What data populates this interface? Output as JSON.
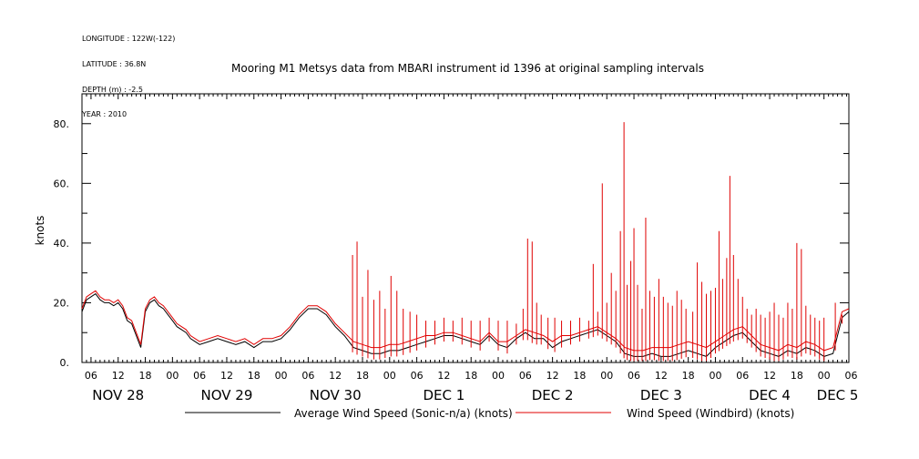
{
  "header": {
    "meta_lines": [
      "LONGITUDE : 122W(-122)",
      "LATITUDE : 36.8N",
      "DEPTH (m) : -2.5",
      "YEAR : 2010"
    ],
    "title": "Mooring M1 Metsys data from MBARI instrument id 1396 at original sampling intervals"
  },
  "colors": {
    "average": "#000000",
    "windbird": "#e00000",
    "axes": "#000000"
  },
  "chart_data": {
    "type": "line",
    "title": "Mooring M1 Metsys data from MBARI instrument id 1396 at original sampling intervals",
    "ylabel": "knots",
    "xlabel": "",
    "ylim": [
      0,
      90
    ],
    "yticks": [
      0,
      20,
      40,
      60,
      80
    ],
    "ytick_labels": [
      "0.",
      "20.",
      "40.",
      "60.",
      "80."
    ],
    "x_unit": "hours since 2010-11-28 00:00",
    "xlim": [
      4,
      173.5
    ],
    "hour_ticks": [
      {
        "x": 6,
        "label": "06"
      },
      {
        "x": 12,
        "label": "12"
      },
      {
        "x": 18,
        "label": "18"
      },
      {
        "x": 24,
        "label": "00"
      },
      {
        "x": 30,
        "label": "06"
      },
      {
        "x": 36,
        "label": "12"
      },
      {
        "x": 42,
        "label": "18"
      },
      {
        "x": 48,
        "label": "00"
      },
      {
        "x": 54,
        "label": "06"
      },
      {
        "x": 60,
        "label": "12"
      },
      {
        "x": 66,
        "label": "18"
      },
      {
        "x": 72,
        "label": "00"
      },
      {
        "x": 78,
        "label": "06"
      },
      {
        "x": 84,
        "label": "12"
      },
      {
        "x": 90,
        "label": "18"
      },
      {
        "x": 96,
        "label": "00"
      },
      {
        "x": 102,
        "label": "06"
      },
      {
        "x": 108,
        "label": "12"
      },
      {
        "x": 114,
        "label": "18"
      },
      {
        "x": 120,
        "label": "00"
      },
      {
        "x": 126,
        "label": "06"
      },
      {
        "x": 132,
        "label": "12"
      },
      {
        "x": 138,
        "label": "18"
      },
      {
        "x": 144,
        "label": "00"
      },
      {
        "x": 150,
        "label": "06"
      },
      {
        "x": 156,
        "label": "12"
      },
      {
        "x": 162,
        "label": "18"
      },
      {
        "x": 168,
        "label": "00"
      },
      {
        "x": 174,
        "label": "06"
      }
    ],
    "day_labels": [
      {
        "x": 12,
        "label": "NOV 28"
      },
      {
        "x": 36,
        "label": "NOV 29"
      },
      {
        "x": 60,
        "label": "NOV 30"
      },
      {
        "x": 84,
        "label": "DEC  1"
      },
      {
        "x": 108,
        "label": "DEC  2"
      },
      {
        "x": 132,
        "label": "DEC  3"
      },
      {
        "x": 156,
        "label": "DEC  4"
      },
      {
        "x": 171,
        "label": "DEC  5"
      }
    ],
    "series": [
      {
        "name": "Average Wind Speed (Sonic-n/a) (knots)",
        "color": "#000000",
        "x": [
          4,
          5,
          6,
          7,
          8,
          9,
          10,
          11,
          12,
          13,
          14,
          15,
          16,
          17,
          18,
          19,
          20,
          21,
          22,
          23,
          24,
          25,
          26,
          27,
          28,
          29,
          30,
          32,
          34,
          36,
          38,
          40,
          42,
          44,
          46,
          48,
          50,
          52,
          54,
          56,
          58,
          60,
          62,
          64,
          66,
          68,
          70,
          72,
          74,
          76,
          78,
          80,
          82,
          84,
          86,
          88,
          90,
          92,
          94,
          96,
          98,
          100,
          102,
          104,
          106,
          108,
          110,
          112,
          114,
          116,
          118,
          120,
          122,
          124,
          126,
          128,
          130,
          132,
          134,
          136,
          138,
          140,
          142,
          144,
          146,
          148,
          150,
          152,
          154,
          156,
          158,
          160,
          162,
          164,
          166,
          168,
          170,
          172,
          173.5
        ],
        "values": [
          17,
          21,
          22,
          23,
          21,
          20,
          20,
          19,
          20,
          18,
          14,
          13,
          9,
          5,
          17,
          20,
          21,
          19,
          18,
          16,
          14,
          12,
          11,
          10,
          8,
          7,
          6,
          7,
          8,
          7,
          6,
          7,
          5,
          7,
          7,
          8,
          11,
          15,
          18,
          18,
          16,
          12,
          9,
          5,
          4,
          3,
          3,
          4,
          4,
          5,
          6,
          7,
          8,
          9,
          9,
          8,
          7,
          6,
          9,
          6,
          5,
          8,
          10,
          8,
          8,
          5,
          7,
          8,
          9,
          10,
          11,
          9,
          7,
          3,
          2,
          2,
          3,
          2,
          2,
          3,
          4,
          3,
          2,
          5,
          7,
          9,
          10,
          7,
          4,
          3,
          2,
          4,
          3,
          5,
          4,
          2,
          3,
          15,
          17
        ]
      },
      {
        "name": "Wind Speed (Windbird) (knots)",
        "color": "#e00000",
        "x": [
          4,
          5,
          6,
          7,
          8,
          9,
          10,
          11,
          12,
          13,
          14,
          15,
          16,
          17,
          18,
          19,
          20,
          21,
          22,
          23,
          24,
          25,
          26,
          27,
          28,
          29,
          30,
          32,
          34,
          36,
          38,
          40,
          42,
          44,
          46,
          48,
          50,
          52,
          54,
          56,
          58,
          60,
          62,
          64,
          66,
          68,
          70,
          72,
          74,
          76,
          78,
          80,
          82,
          84,
          86,
          88,
          90,
          92,
          94,
          96,
          98,
          100,
          102,
          104,
          106,
          108,
          110,
          112,
          114,
          116,
          118,
          120,
          122,
          124,
          126,
          128,
          130,
          132,
          134,
          136,
          138,
          140,
          142,
          144,
          146,
          148,
          150,
          152,
          154,
          156,
          158,
          160,
          162,
          164,
          166,
          168,
          170,
          172,
          173.5
        ],
        "values": [
          18,
          22,
          23,
          24,
          22,
          21,
          21,
          20,
          21,
          19,
          15,
          14,
          10,
          6,
          18,
          21,
          22,
          20,
          19,
          17,
          15,
          13,
          12,
          11,
          9,
          8,
          7,
          8,
          9,
          8,
          7,
          8,
          6,
          8,
          8,
          9,
          12,
          16,
          19,
          19,
          17,
          13,
          10,
          7,
          6,
          5,
          5,
          6,
          6,
          7,
          8,
          9,
          9,
          10,
          10,
          9,
          8,
          7,
          10,
          7,
          7,
          9,
          11,
          10,
          9,
          7,
          9,
          9,
          10,
          11,
          12,
          10,
          8,
          5,
          4,
          4,
          5,
          5,
          5,
          6,
          7,
          6,
          5,
          7,
          9,
          11,
          12,
          9,
          6,
          5,
          4,
          6,
          5,
          7,
          6,
          4,
          5,
          17,
          18
        ],
        "spikes": [
          {
            "x": 63.8,
            "y": 36
          },
          {
            "x": 64.8,
            "y": 40.5
          },
          {
            "x": 66,
            "y": 22
          },
          {
            "x": 67.2,
            "y": 31
          },
          {
            "x": 68.5,
            "y": 21
          },
          {
            "x": 69.8,
            "y": 24
          },
          {
            "x": 71,
            "y": 18
          },
          {
            "x": 72.3,
            "y": 29
          },
          {
            "x": 73.6,
            "y": 24
          },
          {
            "x": 75,
            "y": 18
          },
          {
            "x": 76.5,
            "y": 17
          },
          {
            "x": 78,
            "y": 16
          },
          {
            "x": 80,
            "y": 14
          },
          {
            "x": 82,
            "y": 14
          },
          {
            "x": 84,
            "y": 15
          },
          {
            "x": 86,
            "y": 14
          },
          {
            "x": 88,
            "y": 15
          },
          {
            "x": 90,
            "y": 14
          },
          {
            "x": 92,
            "y": 14
          },
          {
            "x": 94,
            "y": 15
          },
          {
            "x": 96,
            "y": 14
          },
          {
            "x": 98,
            "y": 14
          },
          {
            "x": 100,
            "y": 13
          },
          {
            "x": 101.5,
            "y": 18
          },
          {
            "x": 102.5,
            "y": 41.5
          },
          {
            "x": 103.5,
            "y": 40.5
          },
          {
            "x": 104.5,
            "y": 20
          },
          {
            "x": 105.5,
            "y": 16
          },
          {
            "x": 107,
            "y": 15
          },
          {
            "x": 108.5,
            "y": 15
          },
          {
            "x": 110,
            "y": 14
          },
          {
            "x": 112,
            "y": 14
          },
          {
            "x": 114,
            "y": 15
          },
          {
            "x": 116,
            "y": 14
          },
          {
            "x": 117,
            "y": 33
          },
          {
            "x": 118,
            "y": 17
          },
          {
            "x": 119,
            "y": 60
          },
          {
            "x": 120,
            "y": 20
          },
          {
            "x": 121,
            "y": 30
          },
          {
            "x": 122,
            "y": 24
          },
          {
            "x": 123,
            "y": 44
          },
          {
            "x": 123.8,
            "y": 80.5
          },
          {
            "x": 124.5,
            "y": 26
          },
          {
            "x": 125.3,
            "y": 34
          },
          {
            "x": 126,
            "y": 45
          },
          {
            "x": 126.8,
            "y": 26
          },
          {
            "x": 127.8,
            "y": 18
          },
          {
            "x": 128.6,
            "y": 48.5
          },
          {
            "x": 129.5,
            "y": 24
          },
          {
            "x": 130.5,
            "y": 22
          },
          {
            "x": 131.5,
            "y": 28
          },
          {
            "x": 132.5,
            "y": 22
          },
          {
            "x": 133.5,
            "y": 20
          },
          {
            "x": 134.5,
            "y": 19
          },
          {
            "x": 135.5,
            "y": 24
          },
          {
            "x": 136.5,
            "y": 21
          },
          {
            "x": 137.5,
            "y": 18
          },
          {
            "x": 139,
            "y": 17
          },
          {
            "x": 140,
            "y": 33.5
          },
          {
            "x": 141,
            "y": 27
          },
          {
            "x": 142,
            "y": 23
          },
          {
            "x": 143,
            "y": 24
          },
          {
            "x": 144,
            "y": 25
          },
          {
            "x": 144.8,
            "y": 44
          },
          {
            "x": 145.6,
            "y": 28
          },
          {
            "x": 146.5,
            "y": 35
          },
          {
            "x": 147.2,
            "y": 62.5
          },
          {
            "x": 148,
            "y": 36
          },
          {
            "x": 149,
            "y": 28
          },
          {
            "x": 150,
            "y": 22
          },
          {
            "x": 151,
            "y": 18
          },
          {
            "x": 152,
            "y": 16
          },
          {
            "x": 153,
            "y": 18
          },
          {
            "x": 154,
            "y": 16
          },
          {
            "x": 155,
            "y": 15
          },
          {
            "x": 156,
            "y": 17
          },
          {
            "x": 157,
            "y": 20
          },
          {
            "x": 158,
            "y": 16
          },
          {
            "x": 159,
            "y": 15
          },
          {
            "x": 160,
            "y": 20
          },
          {
            "x": 161,
            "y": 18
          },
          {
            "x": 162,
            "y": 40
          },
          {
            "x": 163,
            "y": 38
          },
          {
            "x": 164,
            "y": 19
          },
          {
            "x": 165,
            "y": 16
          },
          {
            "x": 166,
            "y": 15
          },
          {
            "x": 167,
            "y": 14
          },
          {
            "x": 168,
            "y": 15
          },
          {
            "x": 170.5,
            "y": 20
          },
          {
            "x": 172,
            "y": 16
          }
        ]
      }
    ],
    "legend": [
      {
        "label": "Average Wind Speed (Sonic-n/a) (knots)",
        "color": "#000000"
      },
      {
        "label": "Wind Speed (Windbird) (knots)",
        "color": "#e00000"
      }
    ],
    "legend_position": "bottom"
  }
}
